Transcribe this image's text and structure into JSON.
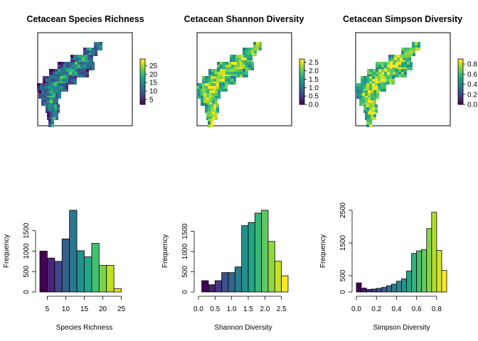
{
  "chart_data": [
    {
      "type": "heatmap",
      "title": "Cetacean Species Richness",
      "legend_ticks": [
        5,
        10,
        15,
        20,
        25
      ],
      "legend_range": [
        2,
        29
      ],
      "legend_placement": "right",
      "bias": 0.25
    },
    {
      "type": "heatmap",
      "title": "Cetacean Shannon Diversity",
      "legend_ticks": [
        "0.0",
        "0.5",
        "1.0",
        "1.5",
        "2.0",
        "2.5"
      ],
      "legend_range": [
        0,
        2.7
      ],
      "legend_placement": "right",
      "bias": 0.72
    },
    {
      "type": "heatmap",
      "title": "Cetacean Simpson Diversity",
      "legend_ticks": [
        "0.0",
        "0.2",
        "0.4",
        "0.6",
        "0.8"
      ],
      "legend_range": [
        0,
        0.9
      ],
      "legend_placement": "right",
      "bias": 0.74
    },
    {
      "type": "bar",
      "title": "",
      "xlabel": "Species Richness",
      "ylabel": "Frequency",
      "bin_start": 3,
      "bin_width": 2,
      "values": [
        1000,
        830,
        750,
        1300,
        2000,
        1010,
        860,
        1190,
        650,
        650,
        80
      ],
      "xticks": [
        5,
        10,
        15,
        20,
        25
      ],
      "yticks": [
        0,
        500,
        1000,
        1500
      ],
      "xlim": [
        3,
        27
      ],
      "ylim": [
        0,
        2000
      ]
    },
    {
      "type": "bar",
      "title": "",
      "xlabel": "Shannon Diversity",
      "ylabel": "Frequency",
      "bin_start": 0.1,
      "bin_width": 0.2,
      "values": [
        280,
        180,
        280,
        480,
        480,
        620,
        1640,
        1720,
        1950,
        2020,
        1250,
        760,
        400
      ],
      "xticks": [
        "0.0",
        "0.5",
        "1.0",
        "1.5",
        "2.0",
        "2.5"
      ],
      "yticks": [
        0,
        500,
        1000,
        1500
      ],
      "xlim": [
        0,
        2.7
      ],
      "ylim": [
        0,
        2020
      ]
    },
    {
      "type": "bar",
      "title": "",
      "xlabel": "Simpson Diversity",
      "ylabel": "Frequency",
      "bin_start": 0,
      "bin_width": 0.05,
      "values": [
        280,
        120,
        80,
        90,
        110,
        140,
        190,
        240,
        330,
        400,
        640,
        1180,
        1260,
        1300,
        1940,
        2440,
        1270,
        660
      ],
      "xticks": [
        "0.0",
        "0.2",
        "0.4",
        "0.6",
        "0.8"
      ],
      "yticks": [
        0,
        500,
        1500,
        2500
      ],
      "xlim": [
        0,
        0.9
      ],
      "ylim": [
        0,
        2500
      ]
    }
  ]
}
